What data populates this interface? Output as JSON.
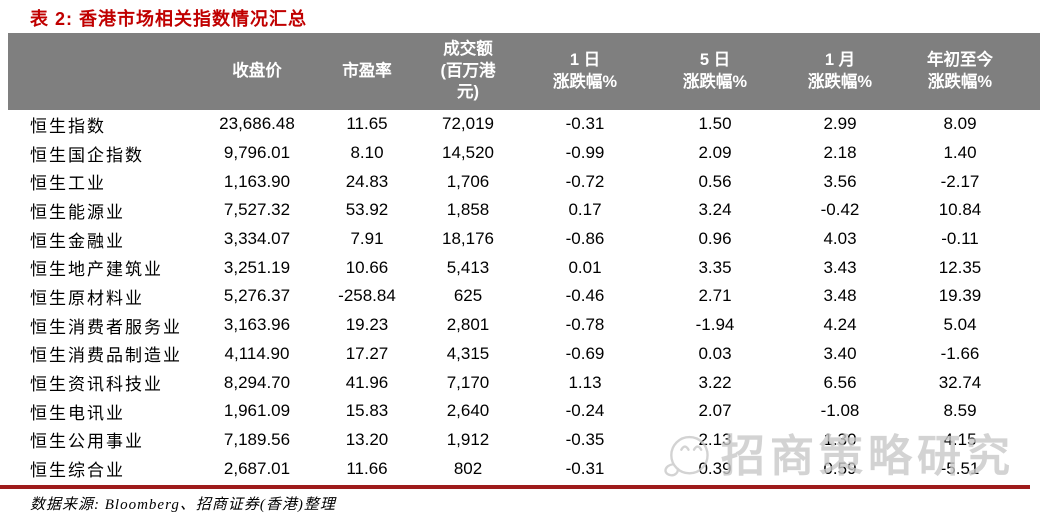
{
  "title": "表 2: 香港市场相关指数情况汇总",
  "colors": {
    "title_red": "#C00000",
    "header_bg": "#7F7F7F",
    "header_text": "#FFFFFF",
    "rule_red": "#9E1B1B",
    "watermark_gray": "#C9C9C9"
  },
  "table": {
    "columns": {
      "name": "",
      "close": "收盘价",
      "pe": "市盈率",
      "turnover": "成交额\n(百万港\n元)",
      "chg_1d": "1 日\n涨跌幅%",
      "chg_5d": "5 日\n涨跌幅%",
      "chg_1m": "1 月\n涨跌幅%",
      "chg_ytd": "年初至今\n涨跌幅%"
    },
    "rows": [
      {
        "name": "恒生指数",
        "close": "23,686.48",
        "pe": "11.65",
        "turnover": "72,019",
        "chg_1d": "-0.31",
        "chg_5d": "1.50",
        "chg_1m": "2.99",
        "chg_ytd": "8.09"
      },
      {
        "name": "恒生国企指数",
        "close": "9,796.01",
        "pe": "8.10",
        "turnover": "14,520",
        "chg_1d": "-0.99",
        "chg_5d": "2.09",
        "chg_1m": "2.18",
        "chg_ytd": "1.40"
      },
      {
        "name": "恒生工业",
        "close": "1,163.90",
        "pe": "24.83",
        "turnover": "1,706",
        "chg_1d": "-0.72",
        "chg_5d": "0.56",
        "chg_1m": "3.56",
        "chg_ytd": "-2.17"
      },
      {
        "name": "恒生能源业",
        "close": "7,527.32",
        "pe": "53.92",
        "turnover": "1,858",
        "chg_1d": "0.17",
        "chg_5d": "3.24",
        "chg_1m": "-0.42",
        "chg_ytd": "10.84"
      },
      {
        "name": "恒生金融业",
        "close": "3,334.07",
        "pe": "7.91",
        "turnover": "18,176",
        "chg_1d": "-0.86",
        "chg_5d": "0.96",
        "chg_1m": "4.03",
        "chg_ytd": "-0.11"
      },
      {
        "name": "恒生地产建筑业",
        "close": "3,251.19",
        "pe": "10.66",
        "turnover": "5,413",
        "chg_1d": "0.01",
        "chg_5d": "3.35",
        "chg_1m": "3.43",
        "chg_ytd": "12.35"
      },
      {
        "name": "恒生原材料业",
        "close": "5,276.37",
        "pe": "-258.84",
        "turnover": "625",
        "chg_1d": "-0.46",
        "chg_5d": "2.71",
        "chg_1m": "3.48",
        "chg_ytd": "19.39"
      },
      {
        "name": "恒生消费者服务业",
        "close": "3,163.96",
        "pe": "19.23",
        "turnover": "2,801",
        "chg_1d": "-0.78",
        "chg_5d": "-1.94",
        "chg_1m": "4.24",
        "chg_ytd": "5.04"
      },
      {
        "name": "恒生消费品制造业",
        "close": "4,114.90",
        "pe": "17.27",
        "turnover": "4,315",
        "chg_1d": "-0.69",
        "chg_5d": "0.03",
        "chg_1m": "3.40",
        "chg_ytd": "-1.66"
      },
      {
        "name": "恒生资讯科技业",
        "close": "8,294.70",
        "pe": "41.96",
        "turnover": "7,170",
        "chg_1d": "1.13",
        "chg_5d": "3.22",
        "chg_1m": "6.56",
        "chg_ytd": "32.74"
      },
      {
        "name": "恒生电讯业",
        "close": "1,961.09",
        "pe": "15.83",
        "turnover": "2,640",
        "chg_1d": "-0.24",
        "chg_5d": "2.07",
        "chg_1m": "-1.08",
        "chg_ytd": "8.59"
      },
      {
        "name": "恒生公用事业",
        "close": "7,189.56",
        "pe": "13.20",
        "turnover": "1,912",
        "chg_1d": "-0.35",
        "chg_5d": "2.13",
        "chg_1m": "1.30",
        "chg_ytd": "4.15"
      },
      {
        "name": "恒生综合业",
        "close": "2,687.01",
        "pe": "11.66",
        "turnover": "802",
        "chg_1d": "-0.31",
        "chg_5d": "0.39",
        "chg_1m": "0.59",
        "chg_ytd": "-5.51"
      }
    ]
  },
  "watermark": {
    "text": "招商策略研究"
  },
  "footer": {
    "source": "数据来源: Bloomberg、招商证券(香港)整理"
  }
}
